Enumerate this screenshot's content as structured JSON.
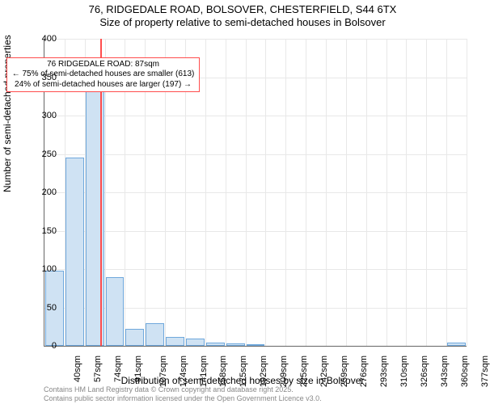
{
  "title_line1": "76, RIDGEDALE ROAD, BOLSOVER, CHESTERFIELD, S44 6TX",
  "title_line2": "Size of property relative to semi-detached houses in Bolsover",
  "chart": {
    "type": "histogram",
    "background_color": "#ffffff",
    "grid_color": "#e8e8e8",
    "axis_color": "#666666",
    "bar_fill": "#cfe2f3",
    "bar_stroke": "#6fa8dc",
    "marker_color": "#ff4d4d",
    "ylabel": "Number of semi-detached properties",
    "xlabel": "Distribution of semi-detached houses by size in Bolsover",
    "ylim": [
      0,
      400
    ],
    "ytick_step": 50,
    "yticks": [
      0,
      50,
      100,
      150,
      200,
      250,
      300,
      350,
      400
    ],
    "ytick_labels": [
      "0",
      "50",
      "100",
      "150",
      "200",
      "250",
      "300",
      "350",
      "400"
    ],
    "x_bin_start": 40,
    "x_bin_width": 17,
    "x_bins": 21,
    "xtick_labels": [
      "40sqm",
      "57sqm",
      "74sqm",
      "91sqm",
      "107sqm",
      "124sqm",
      "141sqm",
      "158sqm",
      "175sqm",
      "192sqm",
      "209sqm",
      "225sqm",
      "242sqm",
      "259sqm",
      "276sqm",
      "293sqm",
      "310sqm",
      "326sqm",
      "343sqm",
      "360sqm",
      "377sqm"
    ],
    "values": [
      98,
      245,
      335,
      90,
      22,
      30,
      12,
      10,
      4,
      3,
      1,
      0,
      0,
      0,
      0,
      0,
      0,
      0,
      0,
      0,
      4
    ],
    "highlight_size_sqm": 87
  },
  "callout": {
    "line1": "76 RIDGEDALE ROAD: 87sqm",
    "line2": "← 75% of semi-detached houses are smaller (613)",
    "line3": "24% of semi-detached houses are larger (197) →"
  },
  "footnote_line1": "Contains HM Land Registry data © Crown copyright and database right 2025.",
  "footnote_line2": "Contains public sector information licensed under the Open Government Licence v3.0.",
  "fonts": {
    "title_size_pt": 13,
    "axis_label_size_pt": 12,
    "tick_size_pt": 11,
    "callout_size_pt": 10,
    "footnote_size_pt": 9
  }
}
